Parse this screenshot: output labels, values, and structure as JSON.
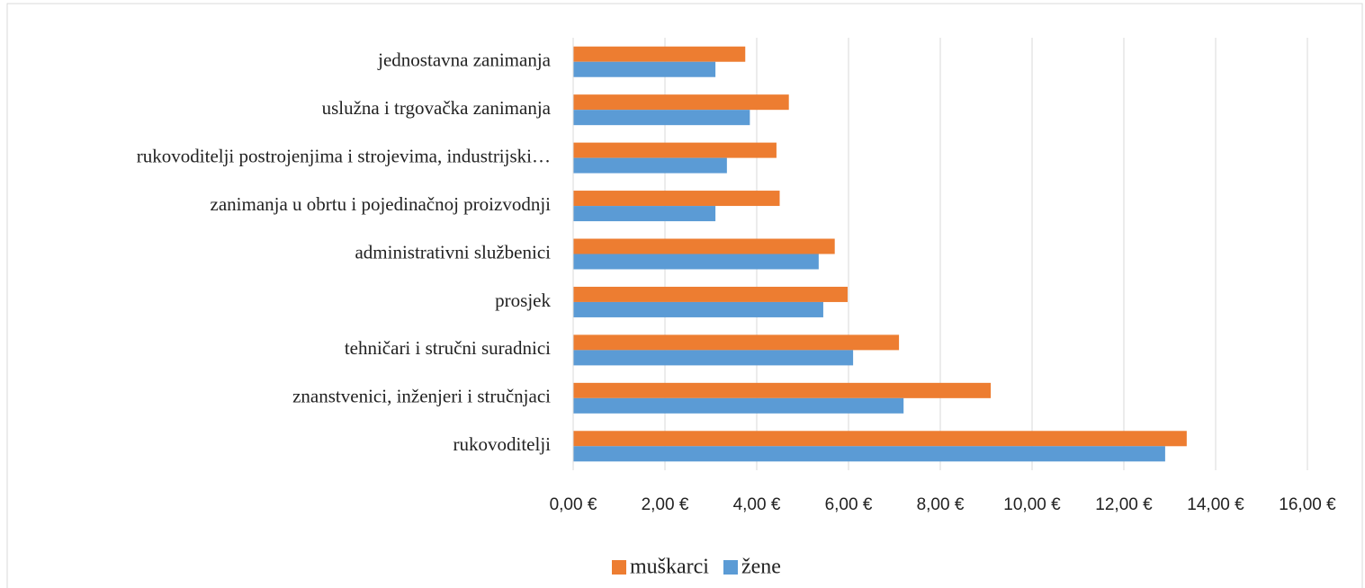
{
  "chart_data": {
    "type": "hbar",
    "categories": [
      "jednostavna zanimanja",
      "uslužna i trgovačka zanimanja",
      "rukovoditelji postrojenjima i strojevima, industrijski…",
      "zanimanja u obrtu i pojedinačnoj proizvodnji",
      "administrativni službenici",
      "prosjek",
      "tehničari i stručni suradnici",
      "znanstvenici, inženjeri i stručnjaci",
      "rukovoditelji"
    ],
    "series": [
      {
        "name": "muškarci",
        "color": "#ed7d31",
        "values": [
          3.75,
          4.7,
          4.43,
          4.5,
          5.7,
          5.98,
          7.1,
          9.1,
          13.37
        ]
      },
      {
        "name": "žene",
        "color": "#5b9bd5",
        "values": [
          3.1,
          3.85,
          3.35,
          3.1,
          5.35,
          5.45,
          6.1,
          7.2,
          12.9
        ]
      }
    ],
    "xlim": [
      0,
      16
    ],
    "xticks": [
      {
        "value": 0,
        "label": "0,00 €"
      },
      {
        "value": 2,
        "label": "2,00 €"
      },
      {
        "value": 4,
        "label": "4,00 €"
      },
      {
        "value": 6,
        "label": "6,00 €"
      },
      {
        "value": 8,
        "label": "8,00 €"
      },
      {
        "value": 10,
        "label": "10,00 €"
      },
      {
        "value": 12,
        "label": "12,00 €"
      },
      {
        "value": 14,
        "label": "14,00 €"
      },
      {
        "value": 16,
        "label": "16,00 €"
      }
    ],
    "grid": true,
    "legend": "bottom"
  }
}
